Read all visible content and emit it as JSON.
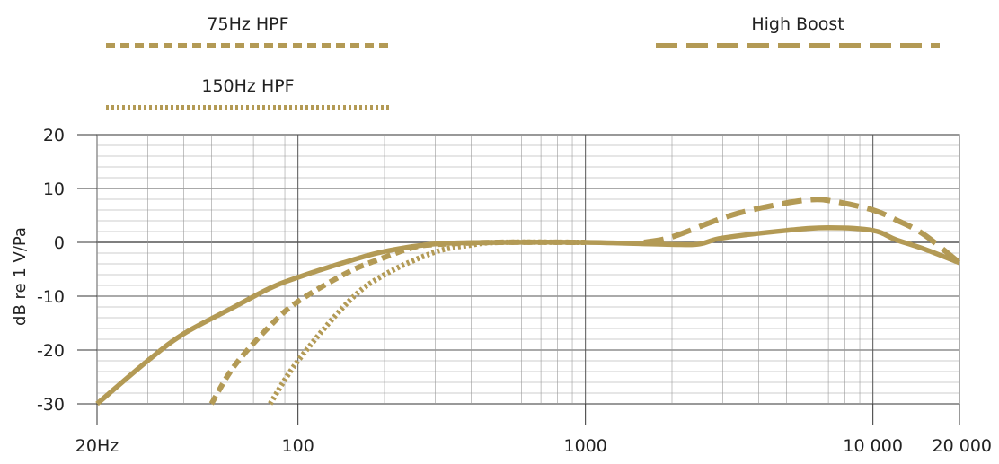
{
  "colors": {
    "curve": "#b39a55",
    "grid_minor": "#9a9a9a",
    "grid_major": "#555555",
    "text": "#222222"
  },
  "chart_data": {
    "type": "line",
    "title": "",
    "ylabel": "dB re 1 V/Pa",
    "xlabel": "",
    "xscale": "log",
    "xlim": [
      20,
      20000
    ],
    "ylim": [
      -30,
      20
    ],
    "grid": true,
    "legend_position": "top",
    "x_ticks": [
      {
        "value": 20,
        "label": "20Hz"
      },
      {
        "value": 100,
        "label": "100"
      },
      {
        "value": 1000,
        "label": "1000"
      },
      {
        "value": 10000,
        "label": "10 000"
      },
      {
        "value": 20000,
        "label": "20 000"
      }
    ],
    "y_ticks": [
      {
        "value": 20,
        "label": "20"
      },
      {
        "value": 10,
        "label": "10"
      },
      {
        "value": 0,
        "label": "0"
      },
      {
        "value": -10,
        "label": "-10"
      },
      {
        "value": -20,
        "label": "-20"
      },
      {
        "value": -30,
        "label": "-30"
      }
    ],
    "legend": [
      {
        "label": "75Hz HPF",
        "style": "dashed-short"
      },
      {
        "label": "High Boost",
        "style": "dashed-long"
      },
      {
        "label": "150Hz HPF",
        "style": "dotted"
      }
    ],
    "series": [
      {
        "key": "flat",
        "style": "solid",
        "x": [
          20,
          30,
          40,
          60,
          80,
          100,
          150,
          200,
          300,
          500,
          1000,
          2000,
          2500,
          3000,
          5000,
          7000,
          10000,
          12000,
          15000,
          20000
        ],
        "y": [
          -30,
          -22,
          -17,
          -12,
          -8.5,
          -6.5,
          -3.5,
          -1.7,
          -0.3,
          0,
          0,
          -0.4,
          -0.3,
          0.8,
          2.2,
          2.7,
          2.2,
          0.5,
          -1.2,
          -3.8
        ]
      },
      {
        "key": "hpf75",
        "label": "75Hz HPF",
        "style": "dashed-short",
        "x": [
          50,
          60,
          80,
          100,
          150,
          200,
          250,
          300,
          500,
          1000
        ],
        "y": [
          -30,
          -23,
          -15.5,
          -11,
          -5.5,
          -2.8,
          -1.0,
          -0.4,
          0,
          0
        ]
      },
      {
        "key": "hpf150",
        "label": "150Hz HPF",
        "style": "dotted",
        "x": [
          80,
          100,
          150,
          200,
          300,
          400,
          500,
          1000
        ],
        "y": [
          -30,
          -22,
          -11,
          -6,
          -1.8,
          -0.5,
          0,
          0
        ]
      },
      {
        "key": "boost",
        "label": "High Boost",
        "style": "dashed-long",
        "x": [
          1600,
          2000,
          3000,
          4000,
          6000,
          7500,
          10000,
          12000,
          15000,
          20000
        ],
        "y": [
          0,
          1,
          4.5,
          6.3,
          7.9,
          7.5,
          6,
          4.2,
          1.5,
          -3.8
        ]
      }
    ]
  }
}
